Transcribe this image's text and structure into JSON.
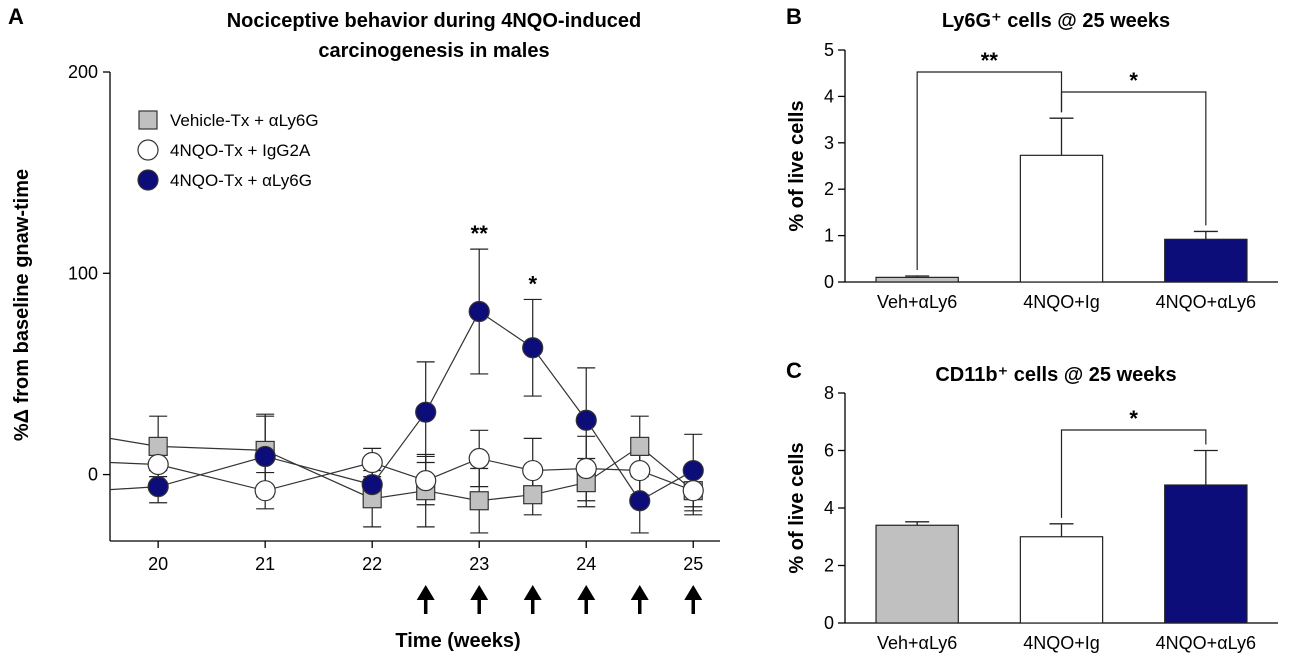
{
  "chart_data": [
    {
      "panel": "A",
      "type": "line",
      "title": [
        "Nociceptive behavior during 4NQO-induced",
        "carcinogenesis in males"
      ],
      "xlabel": "Time (weeks)",
      "ylabel": "%Δ from baseline gnaw-time",
      "xlim": [
        19.55,
        25.25
      ],
      "ylim": [
        -33,
        200
      ],
      "xticks": [
        20,
        21,
        22,
        23,
        24,
        25
      ],
      "yticks": [
        0,
        100,
        200
      ],
      "arrows_at": [
        22.5,
        23,
        23.5,
        24,
        24.5,
        25
      ],
      "series": [
        {
          "name": "Vehicle-Tx + αLy6G",
          "marker": "square",
          "color": "#c0c0c0",
          "x": [
            20,
            21,
            22,
            22.5,
            23,
            23.5,
            24,
            24.5,
            25
          ],
          "y": [
            14,
            12,
            -12,
            -8,
            -13,
            -10,
            -4,
            14,
            -8
          ],
          "err": [
            15,
            18,
            14,
            18,
            16,
            10,
            12,
            15,
            12
          ]
        },
        {
          "name": "4NQO-Tx  + IgG2A",
          "marker": "circle",
          "color": "#ffffff",
          "x": [
            20,
            21,
            22,
            22.5,
            23,
            23.5,
            24,
            24.5,
            25
          ],
          "y": [
            5,
            -8,
            6,
            -3,
            8,
            2,
            3,
            2,
            -8
          ],
          "err": [
            10,
            9,
            7,
            12,
            14,
            16,
            16,
            12,
            10
          ]
        },
        {
          "name": "4NQO-Tx  + αLy6G",
          "marker": "circle",
          "color": "#0d0d7a",
          "x": [
            20,
            21,
            22,
            22.5,
            23,
            23.5,
            24,
            24.5,
            25
          ],
          "y": [
            -6,
            9,
            -5,
            31,
            81,
            63,
            27,
            -13,
            2
          ],
          "err": [
            8,
            20,
            10,
            25,
            31,
            24,
            26,
            16,
            18
          ]
        }
      ],
      "annotations": [
        {
          "text": "**",
          "x": 23
        },
        {
          "text": "*",
          "x": 23.5
        }
      ]
    },
    {
      "panel": "B",
      "type": "bar",
      "title": "Ly6G⁺ cells @ 25 weeks",
      "ylabel": "% of live cells",
      "ylim": [
        0,
        5
      ],
      "yticks": [
        0,
        1,
        2,
        3,
        4,
        5
      ],
      "categories": [
        "Veh+αLy6",
        "4NQO+Ig",
        "4NQO+αLy6"
      ],
      "values": [
        0.1,
        2.73,
        0.92
      ],
      "err": [
        0.03,
        0.8,
        0.17
      ],
      "colors": [
        "#c0c0c0",
        "#ffffff",
        "#0d0d7a"
      ],
      "brackets": [
        {
          "from": 0,
          "to": 1,
          "text": "**"
        },
        {
          "from": 1,
          "to": 2,
          "text": "*"
        }
      ]
    },
    {
      "panel": "C",
      "type": "bar",
      "title": "CD11b⁺ cells @ 25 weeks",
      "ylabel": "% of live cells",
      "ylim": [
        0,
        8
      ],
      "yticks": [
        0,
        2,
        4,
        6,
        8
      ],
      "categories": [
        "Veh+αLy6",
        "4NQO+Ig",
        "4NQO+αLy6"
      ],
      "values": [
        3.4,
        3.0,
        4.8
      ],
      "err": [
        0.12,
        0.45,
        1.2
      ],
      "colors": [
        "#c0c0c0",
        "#ffffff",
        "#0d0d7a"
      ],
      "brackets": [
        {
          "from": 1,
          "to": 2,
          "text": "*"
        }
      ]
    }
  ]
}
